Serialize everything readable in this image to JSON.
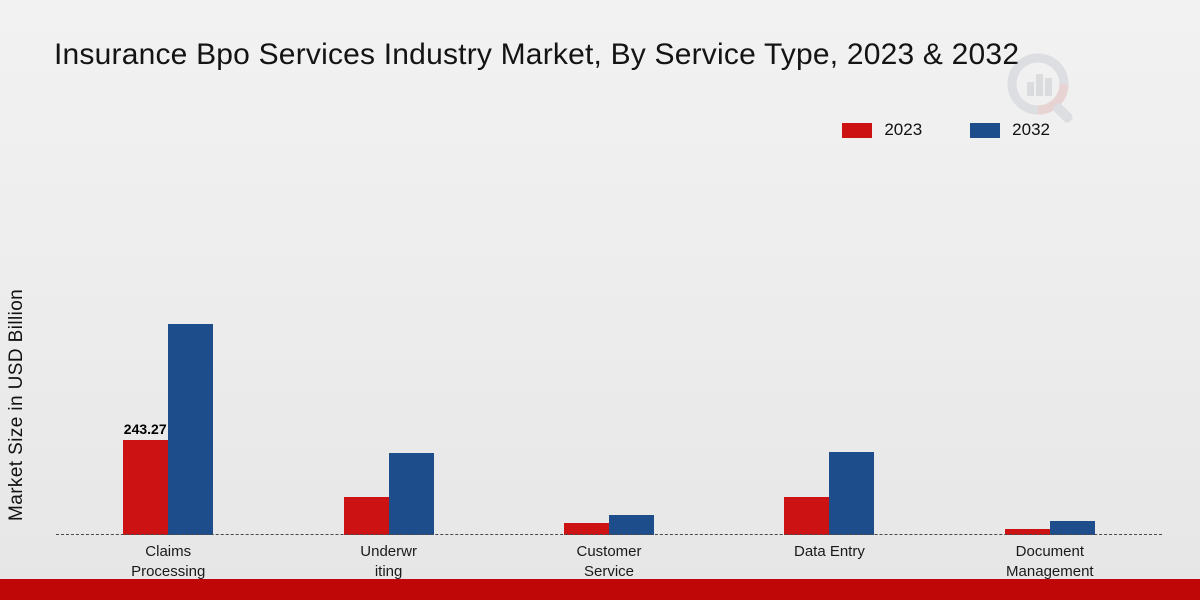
{
  "page": {
    "title": "Insurance Bpo Services Industry Market, By Service Type, 2023 & 2032"
  },
  "chart_data": {
    "type": "bar",
    "title": "Insurance Bpo Services Industry Market, By Service Type, 2023 & 2032",
    "ylabel": "Market Size in USD Billion",
    "xlabel": "",
    "categories": [
      "Claims Processing",
      "Underwriting",
      "Customer Service",
      "Data Entry",
      "Document Management"
    ],
    "category_display": [
      "Claims\nProcessing",
      "Underwr\niting",
      "Customer\nService",
      "Data Entry",
      "Document\nManagement"
    ],
    "series": [
      {
        "name": "2023",
        "color": "#cc1212",
        "values": [
          243.27,
          97,
          30,
          97,
          15
        ]
      },
      {
        "name": "2032",
        "color": "#1d4e8b",
        "values": [
          540,
          210,
          52,
          212,
          36
        ]
      }
    ],
    "annotations": [
      {
        "series": "2023",
        "category_index": 0,
        "text": "243.27"
      }
    ],
    "legend_position": "top-right",
    "grid": false,
    "baseline_style": "dashed",
    "ylim_estimated": [
      0,
      560
    ]
  },
  "colors": {
    "series_2023": "#cc1212",
    "series_2032": "#1d4e8b",
    "footer_bar": "#bf0707",
    "background": "#ededed"
  }
}
